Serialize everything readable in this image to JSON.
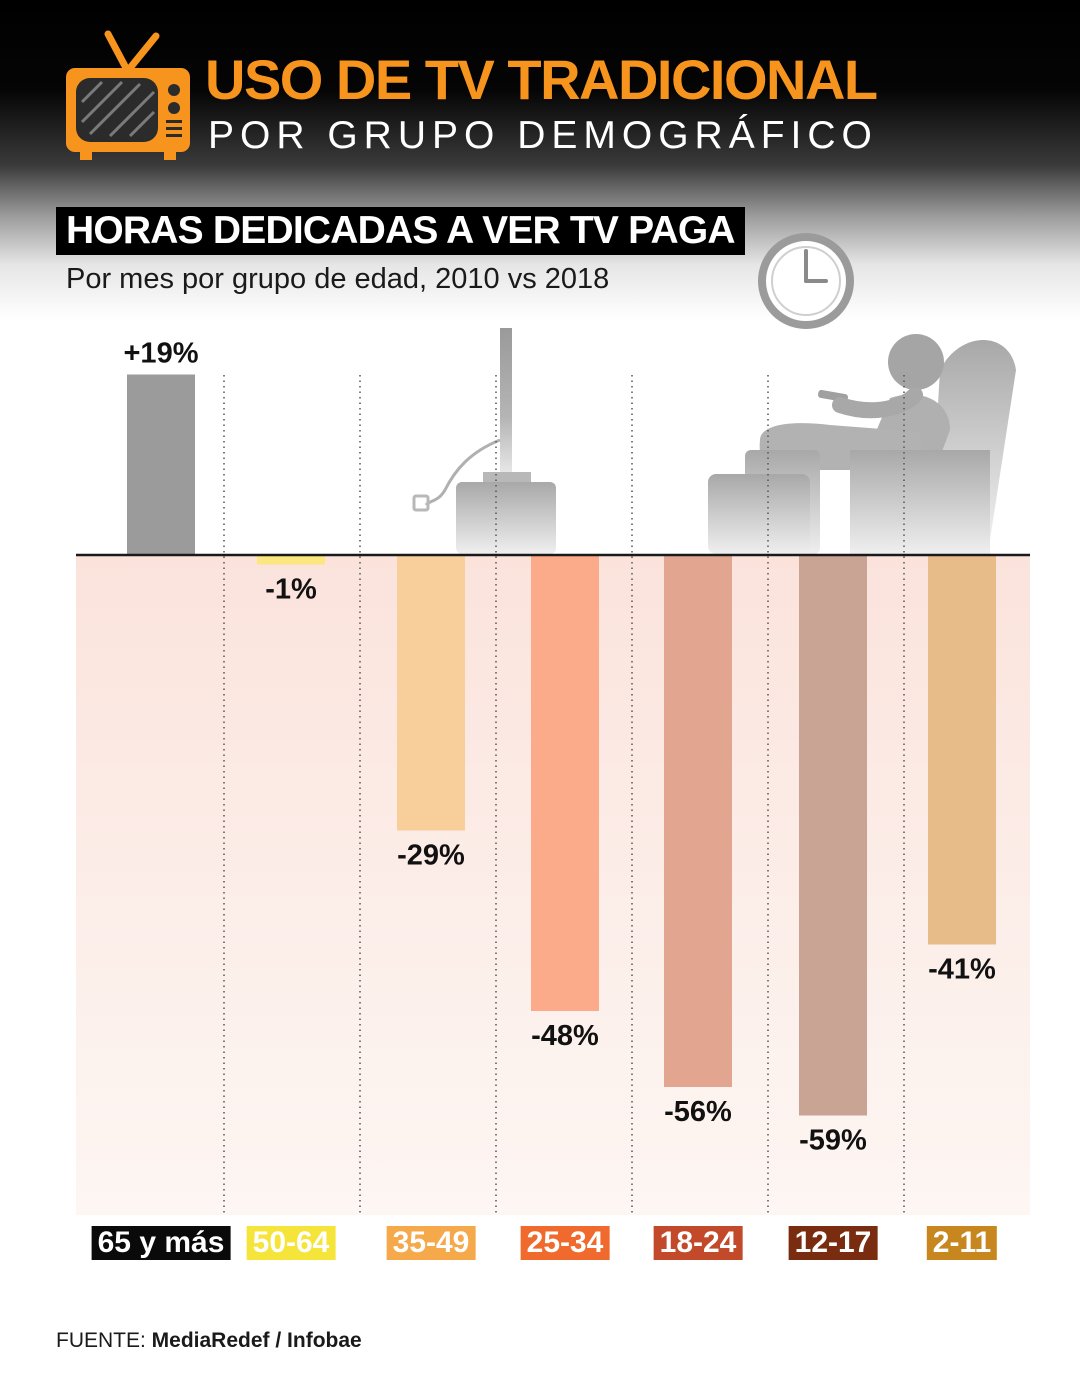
{
  "header": {
    "title": "USO DE TV TRADICIONAL",
    "subtitle": "POR GRUPO DEMOGRÁFICO"
  },
  "section": {
    "title": "HORAS DEDICADAS A VER TV PAGA",
    "subtitle": "Por mes por grupo de edad, 2010 vs 2018"
  },
  "source": {
    "prefix": "FUENTE: ",
    "name": "MediaRedef / Infobae"
  },
  "icons": [
    "tv-icon",
    "clock-icon",
    "person-in-armchair-icon",
    "flat-tv-icon"
  ],
  "colors": {
    "accent": "#f7941d",
    "header_bg": "#000000"
  },
  "chart_data": {
    "type": "bar",
    "title": "HORAS DEDICADAS A VER TV PAGA",
    "subtitle": "Por mes por grupo de edad, 2010 vs 2018",
    "categories": [
      "65 y más",
      "50-64",
      "35-49",
      "25-34",
      "18-24",
      "12-17",
      "2-11"
    ],
    "values": [
      19,
      -1,
      -29,
      -48,
      -56,
      -59,
      -41
    ],
    "data_labels": [
      "+19%",
      "-1%",
      "-29%",
      "-48%",
      "-56%",
      "-59%",
      "-41%"
    ],
    "unit": "%",
    "ylim": [
      -66,
      20
    ],
    "grid": false,
    "legend": "none",
    "bar_colors": [
      "#9b9b9b",
      "#fbe680",
      "#f8cf9a",
      "#fbab89",
      "#e2a58f",
      "#c9a393",
      "#e7bc89"
    ],
    "label_colors": [
      "#0a0a0a",
      "#f5e43a",
      "#f6a94b",
      "#ef6a2c",
      "#c2492a",
      "#7a2c10",
      "#c7871e"
    ]
  }
}
